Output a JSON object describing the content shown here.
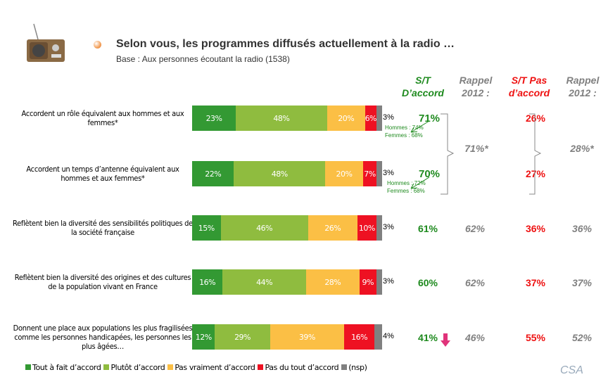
{
  "header": {
    "title": "Selon vous, les programmes diffusés actuellement à la radio …",
    "subtitle": "Base : Aux personnes écoutant la radio (1538)"
  },
  "columns": {
    "st_accord": "S/T D’accord",
    "rappel1": "Rappel 2012 :",
    "st_pas": "S/T Pas d’accord",
    "rappel2": "Rappel 2012 :"
  },
  "colors": {
    "tout": "#339933",
    "plutot": "#8fbc3f",
    "pas_vraiment": "#fbbf45",
    "pas_du_tout": "#ee1122",
    "nsp": "#808080",
    "accent_down": "#e0337a"
  },
  "chart_data": {
    "type": "bar",
    "stacked": true,
    "orientation": "horizontal",
    "xlim": [
      0,
      100
    ],
    "series": [
      {
        "name": "Tout à fait d’accord",
        "values": [
          23,
          22,
          15,
          16,
          12
        ]
      },
      {
        "name": "Plutôt d’accord",
        "values": [
          48,
          48,
          46,
          44,
          29
        ]
      },
      {
        "name": "Pas vraiment d’accord",
        "values": [
          20,
          20,
          26,
          28,
          39
        ]
      },
      {
        "name": "Pas du tout d’accord",
        "values": [
          6,
          7,
          10,
          9,
          16
        ]
      },
      {
        "name": "(nsp)",
        "values": [
          3,
          3,
          3,
          3,
          4
        ]
      }
    ],
    "categories": [
      "Accordent un rôle équivalent aux hommes et aux femmes*",
      "Accordent un temps d’antenne équivalent aux hommes et aux femmes*",
      "Reflètent bien la diversité des sensibilités politiques de la société française",
      "Reflètent bien la diversité des origines et des cultures de la population vivant en France",
      "Donnent une place aux populations les plus fragilisées comme les personnes handicapées, les personnes les plus âgées…"
    ]
  },
  "rows": [
    {
      "st_accord": "71%",
      "hommes": "Hommes : 74%",
      "femmes": "Femmes : 68%",
      "st_pas": "26%"
    },
    {
      "st_accord": "70%",
      "hommes": "Hommes : 72%",
      "femmes": "Femmes : 68%",
      "st_pas": "27%"
    },
    {
      "st_accord": "61%",
      "rappel1": "62%",
      "st_pas": "36%",
      "rappel2": "36%"
    },
    {
      "st_accord": "60%",
      "rappel1": "62%",
      "st_pas": "37%",
      "rappel2": "37%"
    },
    {
      "st_accord": "41%",
      "rappel1": "46%",
      "st_pas": "55%",
      "rappel2": "52%",
      "trend": "down"
    }
  ],
  "grouped_rappel": {
    "rappel1": "71%*",
    "rappel2": "28%*"
  },
  "legend": [
    "Tout à fait d’accord",
    "Plutôt d’accord",
    "Pas vraiment d’accord",
    "Pas du tout d’accord",
    "(nsp)"
  ],
  "logo": "CSA"
}
